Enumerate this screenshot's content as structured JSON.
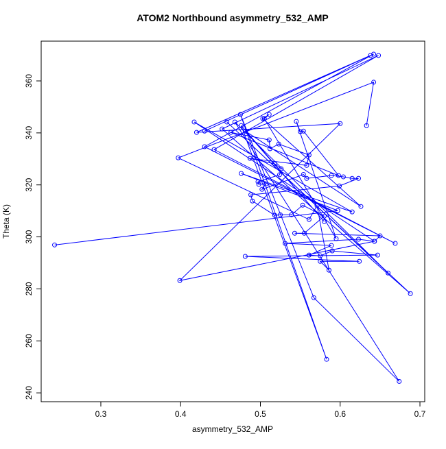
{
  "chart_data": {
    "type": "line",
    "title": "ATOM2 Northbound asymmetry_532_AMP",
    "x_label": "asymmetry_532_AMP",
    "y_label": "Theta (K)",
    "xlim": [
      0.2252,
      0.706
    ],
    "ylim": [
      236.6,
      375.3
    ],
    "xticks": [
      0.3,
      0.4,
      0.5,
      0.6,
      0.7
    ],
    "yticks": [
      240,
      260,
      280,
      300,
      320,
      340,
      360
    ],
    "series": [
      {
        "color": "#0000ff",
        "x": [
          0.242,
          0.597,
          0.476,
          0.615,
          0.417,
          0.643,
          0.399,
          0.6,
          0.42,
          0.638,
          0.43,
          0.642,
          0.43,
          0.669,
          0.442,
          0.648,
          0.452,
          0.688,
          0.458,
          0.66,
          0.468,
          0.674,
          0.567,
          0.475,
          0.583,
          0.476,
          0.58,
          0.481,
          0.626,
          0.503,
          0.511,
          0.505,
          0.595,
          0.545,
          0.55,
          0.554,
          0.598,
          0.463,
          0.511,
          0.512,
          0.523,
          0.561,
          0.558,
          0.487,
          0.518,
          0.526,
          0.524,
          0.497,
          0.498,
          0.507,
          0.502,
          0.554,
          0.558,
          0.589,
          0.604,
          0.615,
          0.623,
          0.599,
          0.488,
          0.49,
          0.518,
          0.525,
          0.539,
          0.553,
          0.58,
          0.555,
          0.543,
          0.65,
          0.643,
          0.623,
          0.531,
          0.589,
          0.561,
          0.575,
          0.59,
          0.647,
          0.481,
          0.624,
          0.575,
          0.586,
          0.571,
          0.561,
          0.397,
          0.642,
          0.633
        ],
        "values": [
          296.9,
          310.1,
          324.4,
          309.6,
          344.2,
          298.3,
          283.2,
          343.6,
          340.2,
          369.8,
          340.7,
          370.3,
          334.7,
          297.5,
          333.6,
          369.8,
          341.5,
          278.2,
          344.2,
          286.1,
          344.2,
          244.4,
          276.6,
          347.1,
          252.9,
          342.8,
          305.9,
          340.7,
          311.7,
          345.5,
          347.1,
          345.5,
          299.3,
          344.4,
          340.5,
          340.7,
          323.6,
          340.2,
          337.3,
          333.9,
          335.7,
          331.5,
          327.5,
          330.2,
          328.1,
          326.2,
          323.9,
          321.2,
          320.2,
          320.4,
          318.3,
          324.0,
          322.5,
          323.6,
          323.1,
          322.5,
          322.5,
          319.6,
          316.2,
          313.8,
          308.3,
          308.5,
          308.5,
          312.2,
          308.0,
          301.4,
          301.4,
          300.4,
          298.3,
          299.1,
          297.5,
          296.7,
          293.0,
          292.7,
          294.6,
          293.0,
          292.5,
          290.6,
          290.6,
          287.2,
          312.0,
          306.7,
          330.4,
          359.5,
          342.8
        ]
      }
    ]
  }
}
